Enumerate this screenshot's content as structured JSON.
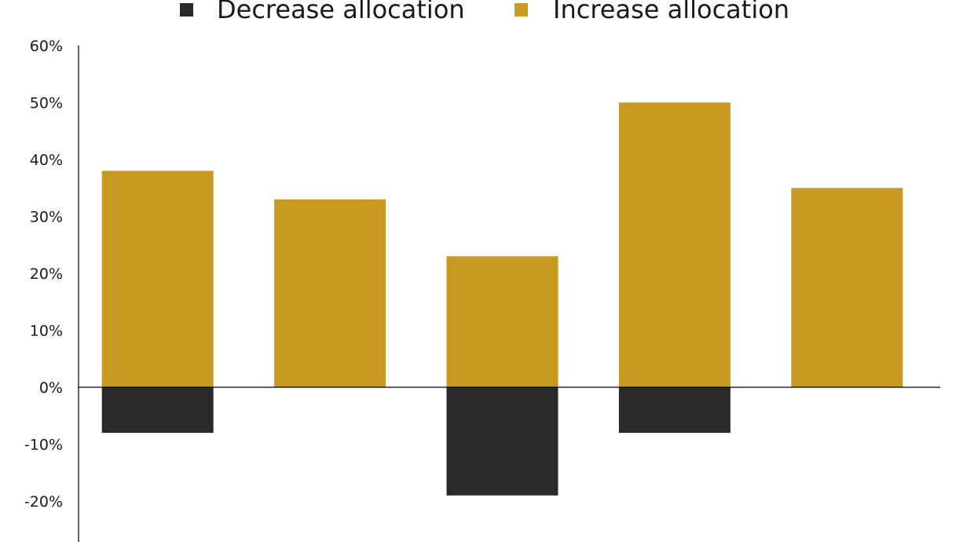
{
  "chart_data": {
    "type": "bar",
    "stacked": true,
    "categories": [
      "",
      "",
      "",
      "",
      ""
    ],
    "series": [
      {
        "name": "Decrease allocation",
        "color": "#2a2a2a",
        "values": [
          -8,
          0,
          -19,
          -8,
          0
        ]
      },
      {
        "name": "Increase allocation",
        "color": "#c99a21",
        "values": [
          38,
          33,
          23,
          50,
          35
        ]
      }
    ],
    "ylim": [
      -27,
      60
    ],
    "yticks": [
      60,
      50,
      40,
      30,
      20,
      10,
      0,
      -10,
      -20
    ],
    "ytick_labels": [
      "60%",
      "50%",
      "40%",
      "30%",
      "20%",
      "10%",
      "0%",
      "-10%",
      "-20%"
    ],
    "legend_position": "top-center",
    "grid": false,
    "title": "",
    "xlabel": "",
    "ylabel": ""
  }
}
